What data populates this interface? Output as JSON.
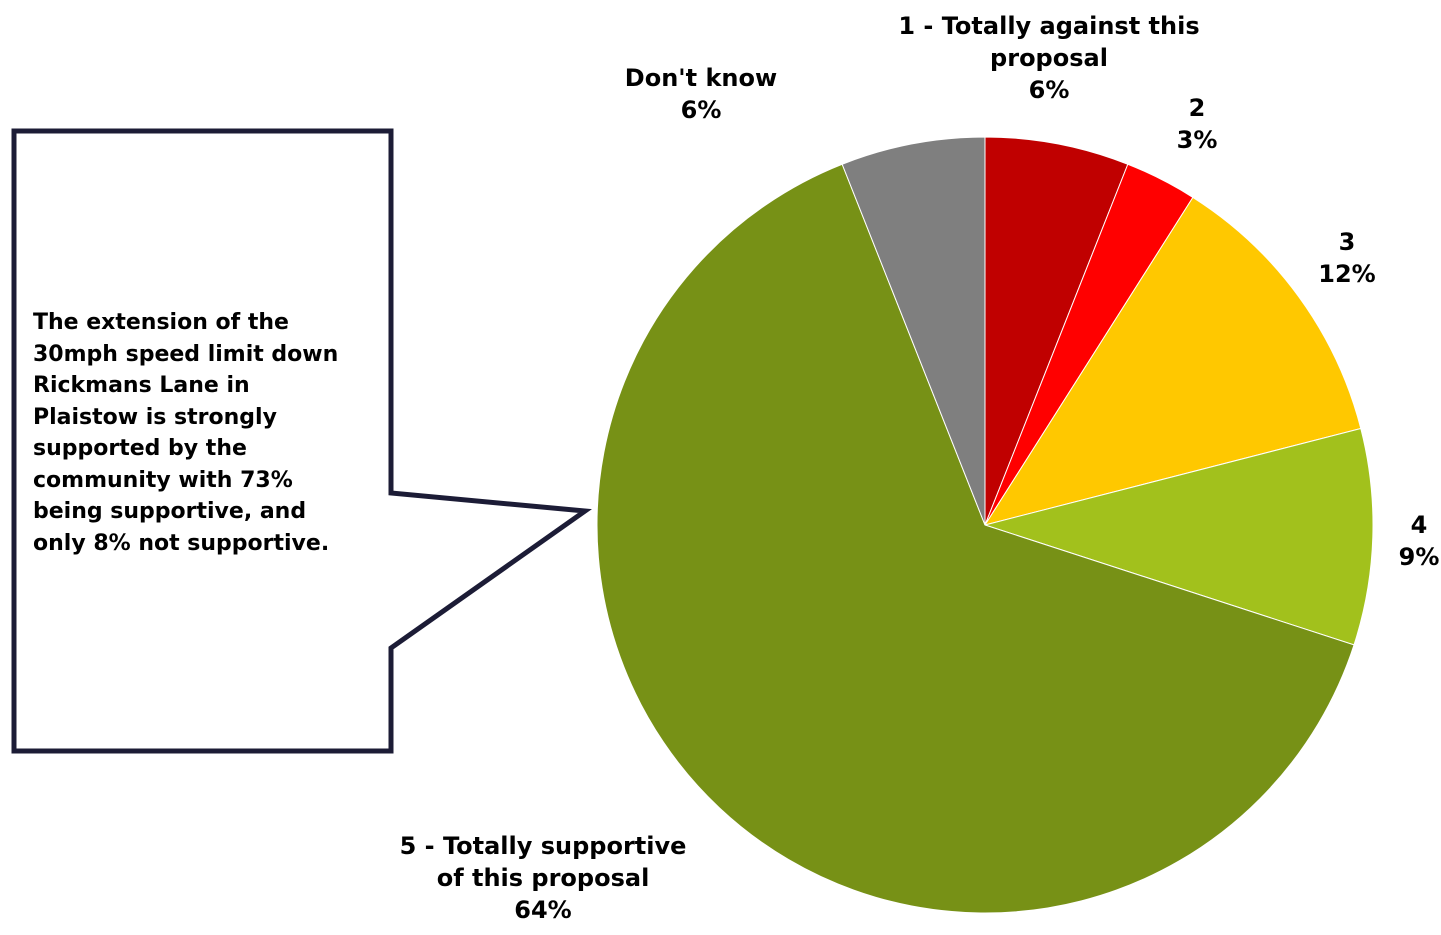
{
  "chart_data": {
    "type": "pie",
    "start_angle_deg": 0,
    "direction": "clockwise",
    "slices": [
      {
        "label_lines": [
          "1 - Totally against this",
          "proposal"
        ],
        "pct_label": "6%",
        "value": 6,
        "color": "#c00000"
      },
      {
        "label_lines": [
          "2"
        ],
        "pct_label": "3%",
        "value": 3,
        "color": "#ff0000"
      },
      {
        "label_lines": [
          "3"
        ],
        "pct_label": "12%",
        "value": 12,
        "color": "#ffc800"
      },
      {
        "label_lines": [
          "4"
        ],
        "pct_label": "9%",
        "value": 9,
        "color": "#a2c11c"
      },
      {
        "label_lines": [
          "5 - Totally supportive",
          "of this proposal"
        ],
        "pct_label": "64%",
        "value": 64,
        "color": "#779116"
      },
      {
        "label_lines": [
          "Don't know"
        ],
        "pct_label": "6%",
        "value": 6,
        "color": "#7f7f7f"
      }
    ],
    "legend": "none"
  },
  "callout": {
    "text": "The extension of the\n30mph speed limit down\nRickmans Lane in\nPlaistow is strongly\nsupported by the\ncommunity with 73%\nbeing supportive, and\nonly 8% not supportive.",
    "border_color": "#1c1c36"
  }
}
